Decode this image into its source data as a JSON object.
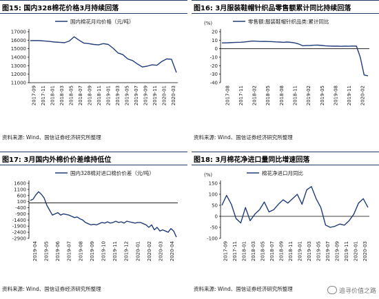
{
  "panels": [
    {
      "title": "图15: 国内328棉花价格3月持续回落",
      "source": "资料来源: Wind、国信证券经济研究所整理",
      "chart_data": {
        "type": "line",
        "title": "",
        "unit": "",
        "series": [
          {
            "name": "国内棉花月均价格（元/吨）",
            "values": [
              15950,
              15960,
              15950,
              15900,
              15850,
              15780,
              15750,
              15700,
              15900,
              16400,
              16000,
              15650,
              15600,
              15500,
              15450,
              15600,
              15500,
              15050,
              14500,
              14300,
              13800,
              13600,
              13200,
              12850,
              12950,
              13100,
              13050,
              13500,
              13800,
              13750,
              12200
            ]
          }
        ],
        "x_ticks": [
          "2017-09",
          "2017-11",
          "2018-01",
          "2018-03",
          "2018-05",
          "2018-07",
          "2018-09",
          "2018-11",
          "2019-01",
          "2019-03",
          "2019-05",
          "2019-07",
          "2019-09",
          "2019-11",
          "2020-01",
          "2020-03"
        ],
        "y_ticks": [
          11000,
          12000,
          13000,
          14000,
          15000,
          16000,
          17000
        ],
        "ylim": [
          11000,
          17000
        ],
        "legend_placement": "top"
      }
    },
    {
      "title": "图16: 3月服装鞋帽针织品零售额累计同比持续回落",
      "source": "资料来源: Wind、国信证券经济研究所整理",
      "chart_data": {
        "type": "line",
        "title": "",
        "unit": "(%)",
        "series": [
          {
            "name": "零售额:服装鞋帽针织品类:累计同比",
            "values": [
              6.8,
              6.9,
              7.0,
              7.3,
              7.5,
              7.6,
              8.0,
              8.5,
              9.0,
              8.8,
              8.5,
              8.6,
              8.4,
              8.3,
              8.0,
              7.8,
              7.5,
              7.8,
              7.4,
              6.8,
              5.5,
              3.5,
              3.7,
              3.8,
              4.1,
              4.2,
              3.8,
              3.3,
              3.1,
              3.0,
              3.0,
              2.8,
              3.0,
              2.9,
              3.1,
              3.0,
              -10.0,
              -30.9,
              -32.0
            ]
          }
        ],
        "x_ticks": [
          "2017-08",
          "2017-11",
          "2018-02",
          "2018-05",
          "2018-08",
          "2018-11",
          "2019-02",
          "2019-05",
          "2019-08",
          "2019-11",
          "2020-02"
        ],
        "y_ticks": [
          -40,
          -30,
          -20,
          -10,
          0,
          10,
          20
        ],
        "ylim": [
          -40,
          20
        ],
        "legend_placement": "top"
      }
    },
    {
      "title": "图17: 3月国内外棉价价差维持低位",
      "source": "资料来源: Wind、国信证券经济研究所整理",
      "chart_data": {
        "type": "line",
        "title": "",
        "unit": "",
        "series": [
          {
            "name": "国内328棉对进口棉价价差（元/吨）",
            "values": [
              200,
              300,
              650,
              900,
              700,
              400,
              -200,
              -600,
              -1000,
              -900,
              -800,
              -1000,
              -900,
              -950,
              -1000,
              -1100,
              -1200,
              -1150,
              -1300,
              -1400,
              -1600,
              -1700,
              -1800,
              -1750,
              -1800,
              -1700,
              -1600,
              -1650,
              -1550,
              -1650,
              -1600,
              -1500,
              -1600,
              -1550,
              -1650,
              -1500,
              -1550,
              -1600,
              -1650,
              -1600,
              -1600,
              -1700,
              -1800,
              -2000,
              -1800,
              -2200,
              -2000,
              -2300,
              -2200,
              -2300,
              -2400,
              -2100,
              -2300,
              -2800
            ]
          }
        ],
        "x_ticks": [
          "2019-04",
          "2019-05",
          "2019-06",
          "2019-07",
          "2019-08",
          "2019-09",
          "2019-10",
          "2019-11",
          "2019-12",
          "2020-01",
          "2020-02",
          "2020-03",
          "2020-04"
        ],
        "y_ticks": [
          -2900,
          -2400,
          -1900,
          -1400,
          -900,
          -400,
          100,
          600,
          1100,
          1600
        ],
        "ylim": [
          -2900,
          1600
        ],
        "legend_placement": "top"
      }
    },
    {
      "title": "图18: 3月棉花净进口量同比增速回落",
      "source": "资料来源: Wind、国信证券经济研究所整理",
      "chart_data": {
        "type": "line",
        "title": "",
        "unit": "(%)",
        "series": [
          {
            "name": "棉花净进口月同比",
            "values": [
              50,
              95,
              55,
              -10,
              -30,
              40,
              -20,
              10,
              30,
              65,
              20,
              30,
              55,
              75,
              60,
              80,
              100,
              55,
              120,
              135,
              80,
              40,
              -40,
              -50,
              -45,
              -35,
              -40,
              -20,
              10,
              60,
              80,
              40
            ]
          }
        ],
        "x_ticks": [
          "2017-09",
          "2017-11",
          "2018-01",
          "2018-03",
          "2018-05",
          "2018-07",
          "2018-09",
          "2018-11",
          "2019-01",
          "2019-03",
          "2019-05",
          "2019-07",
          "2019-09",
          "2019-11",
          "2020-01",
          "2020-03"
        ],
        "y_ticks": [
          -100,
          -50,
          0,
          50,
          100,
          150
        ],
        "ylim": [
          -100,
          150
        ],
        "legend_placement": "top"
      }
    }
  ],
  "watermark": "追寻价值之路",
  "colors": {
    "line": "#1f3b78",
    "title_border": "#1f3864"
  }
}
